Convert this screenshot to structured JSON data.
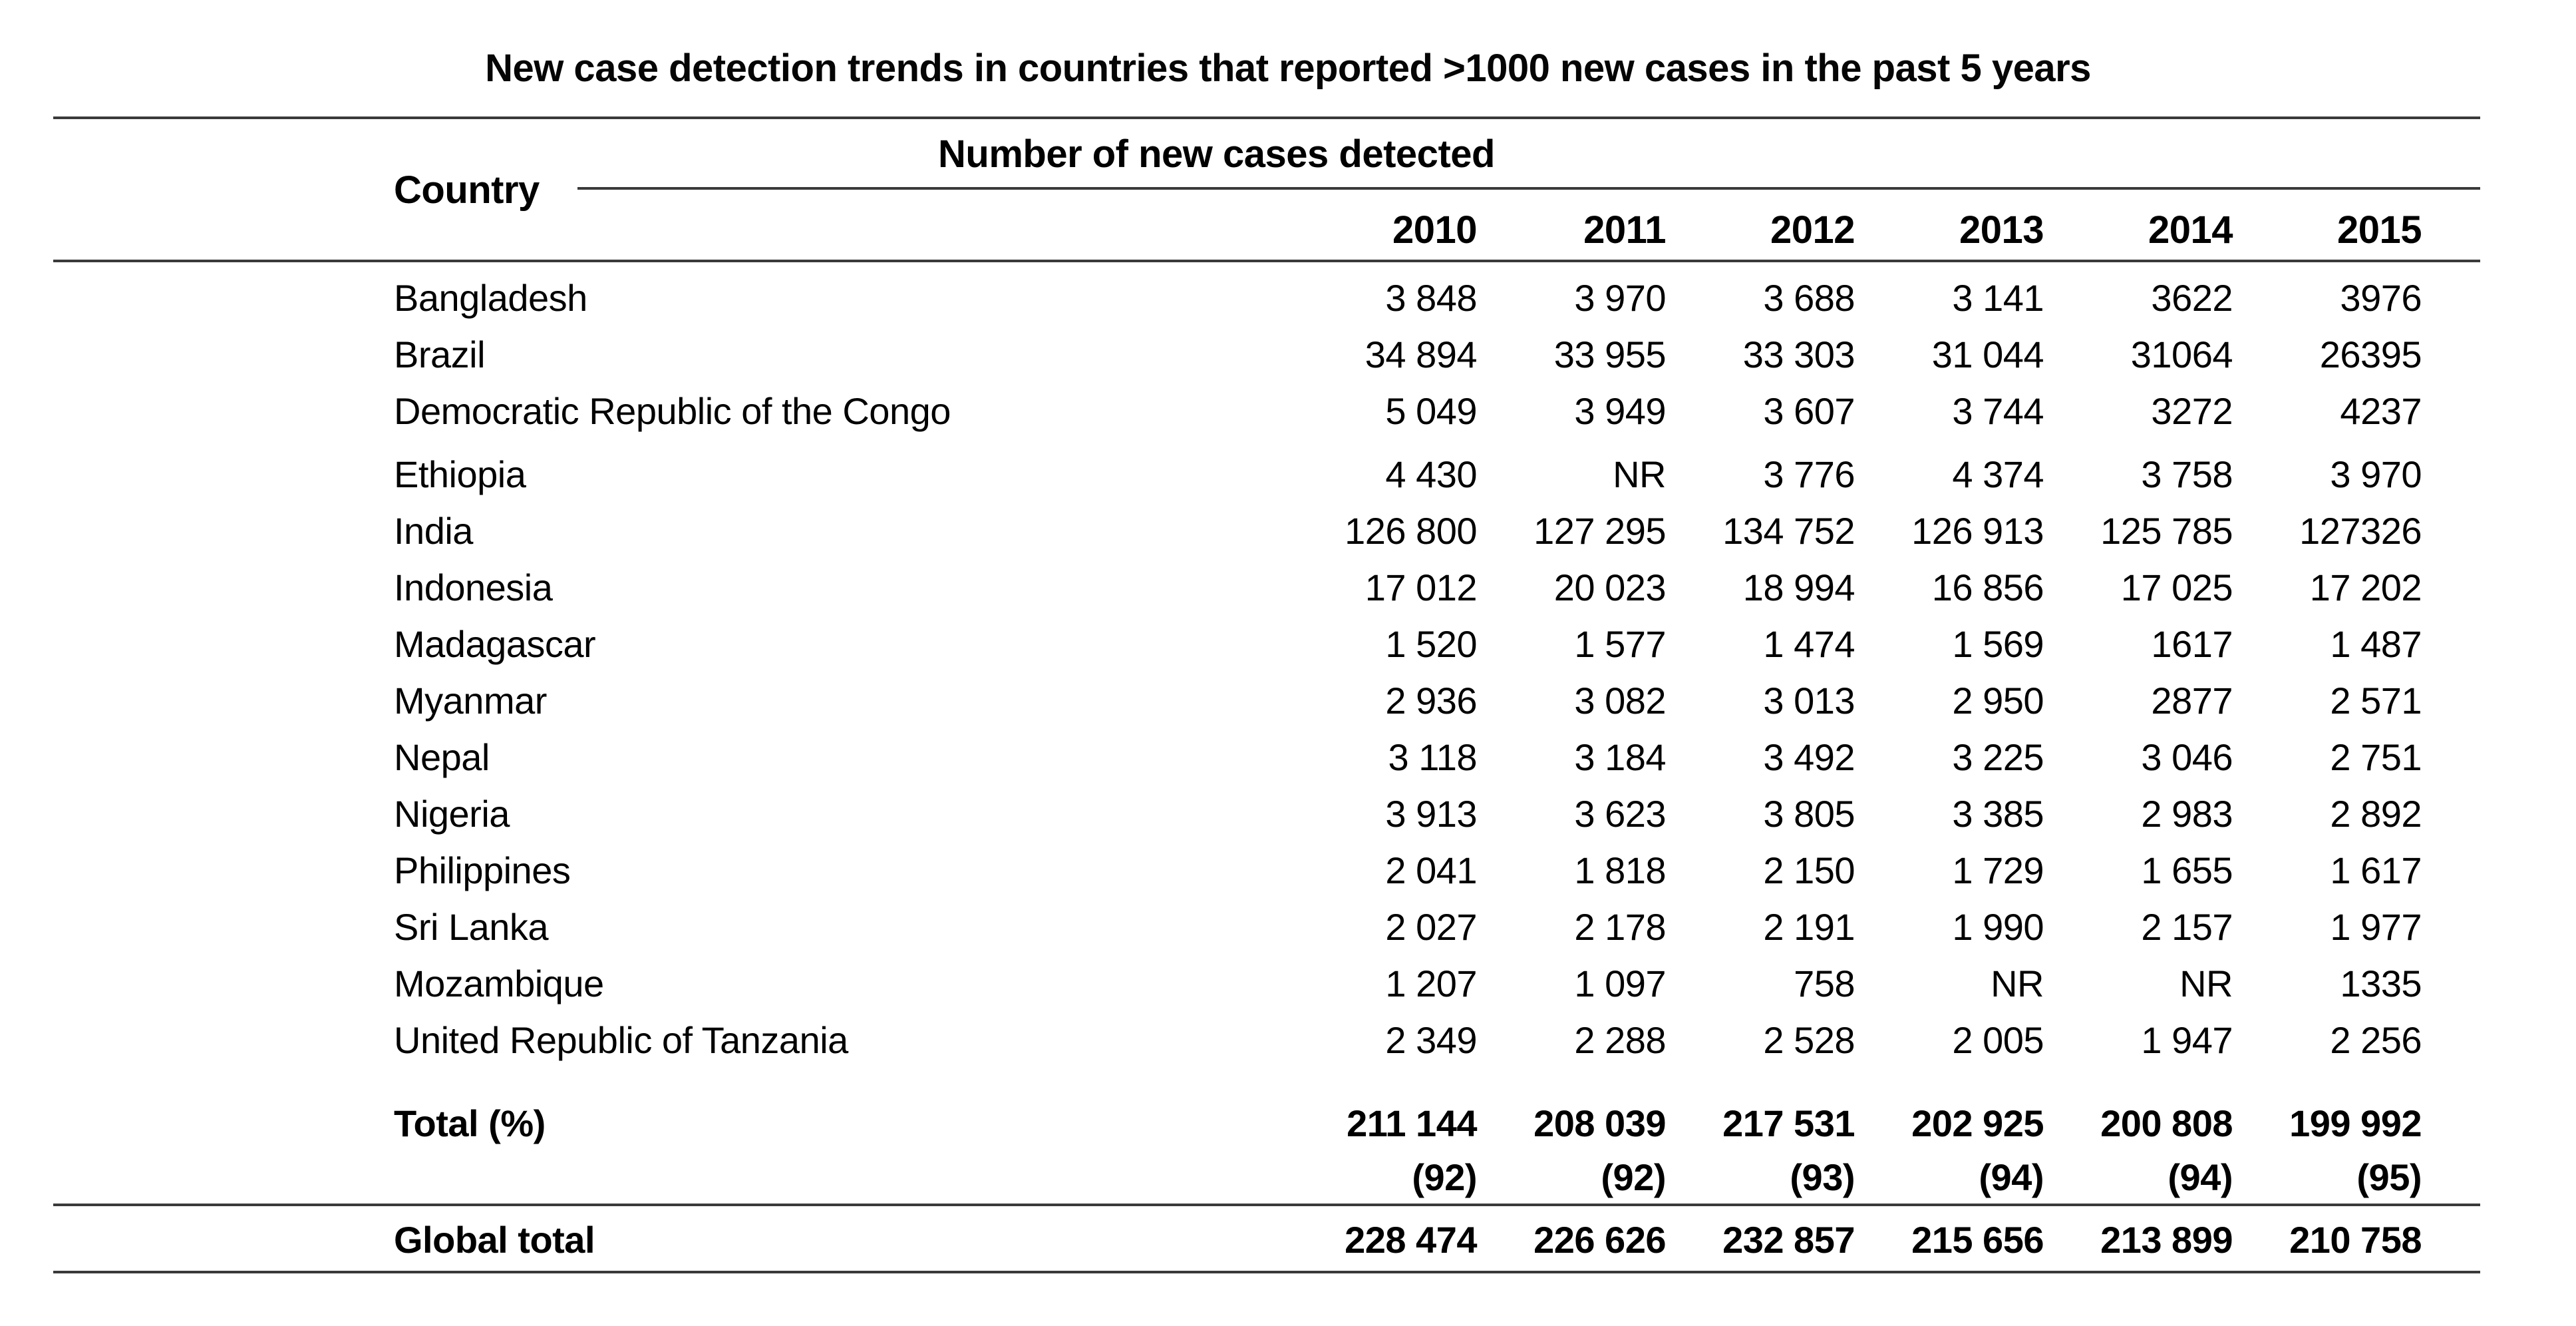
{
  "title": "New case detection trends in countries that reported >1000 new cases in the past 5 years",
  "table": {
    "country_header": "Country",
    "group_header": "Number of new cases detected",
    "years": [
      "2010",
      "2011",
      "2012",
      "2013",
      "2014",
      "2015"
    ],
    "rows": [
      {
        "country": "Bangladesh",
        "values": [
          "3 848",
          "3 970",
          "3 688",
          "3 141",
          "3622",
          "3976"
        ]
      },
      {
        "country": "Brazil",
        "values": [
          "34 894",
          "33 955",
          "33 303",
          "31 044",
          "31064",
          "26395"
        ]
      },
      {
        "country": "Democratic Republic of the Congo",
        "values": [
          "5 049",
          "3 949",
          "3 607",
          "3 744",
          "3272",
          "4237"
        ]
      },
      {
        "country": "Ethiopia",
        "values": [
          "4 430",
          "NR",
          "3 776",
          "4 374",
          "3 758",
          "3 970"
        ],
        "group_start": true
      },
      {
        "country": "India",
        "values": [
          "126 800",
          "127 295",
          "134 752",
          "126 913",
          "125 785",
          "127326"
        ]
      },
      {
        "country": "Indonesia",
        "values": [
          "17 012",
          "20 023",
          "18 994",
          "16 856",
          "17 025",
          "17 202"
        ]
      },
      {
        "country": "Madagascar",
        "values": [
          "1 520",
          "1 577",
          "1 474",
          "1 569",
          "1617",
          "1 487"
        ]
      },
      {
        "country": "Myanmar",
        "values": [
          "2 936",
          "3 082",
          "3 013",
          "2 950",
          "2877",
          "2 571"
        ]
      },
      {
        "country": "Nepal",
        "values": [
          "3 118",
          "3 184",
          "3 492",
          "3 225",
          "3 046",
          "2 751"
        ]
      },
      {
        "country": "Nigeria",
        "values": [
          "3 913",
          "3 623",
          "3 805",
          "3 385",
          "2 983",
          "2 892"
        ]
      },
      {
        "country": "Philippines",
        "values": [
          "2 041",
          "1 818",
          "2 150",
          "1 729",
          "1 655",
          "1 617"
        ]
      },
      {
        "country": "Sri Lanka",
        "values": [
          "2 027",
          "2 178",
          "2 191",
          "1 990",
          "2 157",
          "1 977"
        ]
      },
      {
        "country": "Mozambique",
        "values": [
          "1 207",
          "1 097",
          "758",
          "NR",
          "NR",
          "1335"
        ]
      },
      {
        "country": "United Republic of Tanzania",
        "values": [
          "2 349",
          "2 288",
          "2 528",
          "2 005",
          "1 947",
          "2 256"
        ]
      }
    ],
    "total_row": {
      "label": "Total (%)",
      "values": [
        "211 144",
        "208 039",
        "217 531",
        "202 925",
        "200 808",
        "199 992"
      ],
      "percents": [
        "(92)",
        "(92)",
        "(93)",
        "(94)",
        "(94)",
        "(95)"
      ]
    },
    "global_row": {
      "label": "Global total",
      "values": [
        "228 474",
        "226 626",
        "232 857",
        "215 656",
        "213 899",
        "210 758"
      ]
    }
  }
}
